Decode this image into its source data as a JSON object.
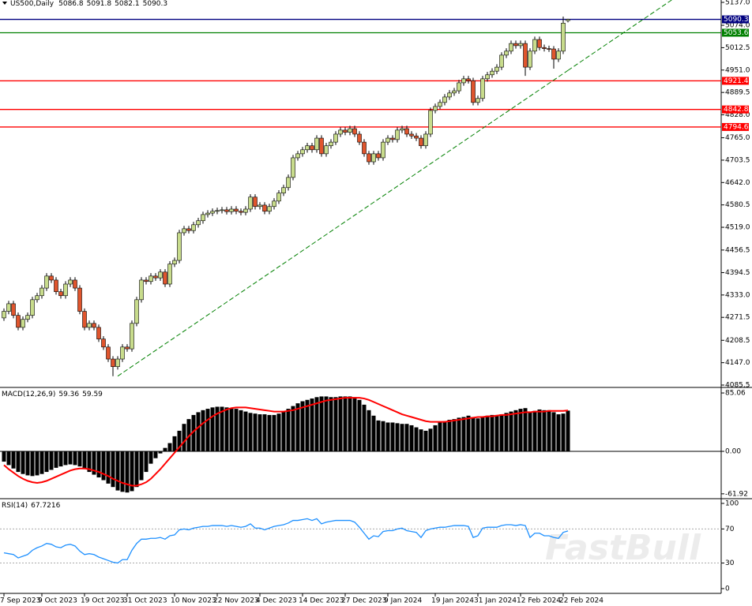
{
  "chart_data": [
    {
      "type": "candlestick",
      "title": "US500,Daily",
      "watermark": "FastBull",
      "categories": [
        "7 Sep 2023",
        null,
        null,
        null,
        null,
        null,
        null,
        null,
        "9 Oct 2023",
        null,
        null,
        null,
        null,
        null,
        null,
        null,
        null,
        "19 Oct 2023",
        null,
        null,
        null,
        null,
        null,
        null,
        null,
        null,
        "31 Oct 2023",
        null,
        null,
        null,
        null,
        null,
        null,
        null,
        null,
        null,
        "10 Nov 2023",
        null,
        null,
        null,
        null,
        null,
        null,
        null,
        null,
        "22 Nov 2023",
        null,
        null,
        null,
        null,
        null,
        null,
        null,
        null,
        "4 Dec 2023",
        null,
        null,
        null,
        null,
        null,
        null,
        null,
        null,
        "14 Dec 2023",
        null,
        null,
        null,
        null,
        null,
        null,
        null,
        null,
        "27 Dec 2023",
        null,
        null,
        null,
        null,
        null,
        null,
        null,
        null,
        "9 Jan 2024",
        null,
        null,
        null,
        null,
        null,
        null,
        null,
        null,
        null,
        "19 Jan 2024",
        null,
        null,
        null,
        null,
        null,
        null,
        null,
        null,
        "31 Jan 2024",
        null,
        null,
        null,
        null,
        null,
        null,
        null,
        null,
        "12 Feb 2024",
        null,
        null,
        null,
        null,
        null,
        null,
        null,
        null,
        "22 Feb 2024",
        null
      ],
      "open": [
        4270,
        4288,
        4309,
        4277,
        4244,
        4266,
        4277,
        4320,
        4331,
        4352,
        4385,
        4374,
        4342,
        4331,
        4363,
        4374,
        4352,
        4288,
        4244,
        4255,
        4244,
        4212,
        4190,
        4157,
        4136,
        4157,
        4190,
        4185,
        4255,
        4320,
        4374,
        4370,
        4385,
        4380,
        4396,
        4363,
        4418,
        4428,
        4504,
        4515,
        4510,
        4526,
        4537,
        4554,
        4558,
        4563,
        4565,
        4567,
        4562,
        4569,
        4563,
        4560,
        4569,
        4602,
        4576,
        4580,
        4563,
        4576,
        4591,
        4613,
        4628,
        4656,
        4710,
        4721,
        4732,
        4743,
        4732,
        4764,
        4721,
        4743,
        4753,
        4775,
        4786,
        4780,
        4790,
        4775,
        4753,
        4721,
        4699,
        4721,
        4710,
        4753,
        4764,
        4760,
        4786,
        4790,
        4775,
        4770,
        4764,
        4743,
        4775,
        4840,
        4851,
        4862,
        4877,
        4888,
        4894,
        4916,
        4927,
        4922,
        4862,
        4873,
        4927,
        4938,
        4948,
        4959,
        4992,
        5003,
        5024,
        5018,
        5024,
        4959,
        5003,
        5035,
        5013,
        5010,
        5009,
        4981,
        5003,
        5086.8
      ],
      "high": [
        4296,
        4317,
        4317,
        4285,
        4274,
        4285,
        4328,
        4339,
        4360,
        4393,
        4393,
        4382,
        4350,
        4371,
        4382,
        4382,
        4360,
        4296,
        4263,
        4263,
        4252,
        4220,
        4198,
        4165,
        4165,
        4198,
        4198,
        4263,
        4328,
        4382,
        4382,
        4393,
        4393,
        4404,
        4404,
        4426,
        4436,
        4512,
        4523,
        4523,
        4534,
        4545,
        4562,
        4566,
        4571,
        4573,
        4575,
        4575,
        4577,
        4577,
        4571,
        4577,
        4610,
        4610,
        4588,
        4588,
        4584,
        4599,
        4621,
        4636,
        4664,
        4718,
        4729,
        4740,
        4751,
        4751,
        4772,
        4772,
        4751,
        4761,
        4783,
        4794,
        4794,
        4798,
        4798,
        4783,
        4761,
        4729,
        4729,
        4729,
        4761,
        4772,
        4772,
        4794,
        4798,
        4798,
        4783,
        4778,
        4772,
        4783,
        4848,
        4859,
        4870,
        4885,
        4896,
        4902,
        4924,
        4935,
        4935,
        4930,
        4881,
        4935,
        4946,
        4956,
        4967,
        5000,
        5011,
        5032,
        5032,
        5032,
        5032,
        5011,
        5043,
        5043,
        5021,
        5018,
        5017,
        5011,
        5098,
        5091.8
      ],
      "low": [
        4262,
        4280,
        4269,
        4236,
        4236,
        4258,
        4269,
        4312,
        4323,
        4344,
        4366,
        4334,
        4323,
        4323,
        4355,
        4344,
        4280,
        4236,
        4236,
        4236,
        4204,
        4182,
        4149,
        4110,
        4128,
        4149,
        4177,
        4177,
        4247,
        4312,
        4362,
        4362,
        4372,
        4372,
        4355,
        4355,
        4410,
        4420,
        4496,
        4502,
        4502,
        4518,
        4529,
        4546,
        4550,
        4555,
        4557,
        4554,
        4554,
        4555,
        4552,
        4552,
        4561,
        4568,
        4568,
        4555,
        4555,
        4568,
        4583,
        4605,
        4620,
        4648,
        4702,
        4713,
        4724,
        4724,
        4724,
        4713,
        4713,
        4735,
        4745,
        4767,
        4772,
        4772,
        4767,
        4745,
        4713,
        4691,
        4691,
        4702,
        4702,
        4745,
        4752,
        4752,
        4778,
        4767,
        4762,
        4756,
        4735,
        4735,
        4767,
        4832,
        4843,
        4854,
        4869,
        4880,
        4886,
        4908,
        4914,
        4854,
        4854,
        4865,
        4919,
        4930,
        4940,
        4951,
        4984,
        4995,
        5010,
        5010,
        4935,
        4951,
        4995,
        5005,
        5002,
        5001,
        4955,
        4973,
        4995,
        5082.1
      ],
      "close": [
        4288,
        4309,
        4277,
        4244,
        4266,
        4277,
        4320,
        4331,
        4352,
        4385,
        4374,
        4342,
        4331,
        4363,
        4374,
        4352,
        4288,
        4244,
        4255,
        4244,
        4212,
        4190,
        4157,
        4136,
        4157,
        4190,
        4185,
        4255,
        4320,
        4374,
        4370,
        4385,
        4380,
        4396,
        4363,
        4418,
        4428,
        4504,
        4515,
        4510,
        4526,
        4537,
        4554,
        4558,
        4563,
        4565,
        4567,
        4562,
        4569,
        4563,
        4560,
        4569,
        4602,
        4576,
        4580,
        4563,
        4576,
        4591,
        4613,
        4628,
        4656,
        4710,
        4721,
        4732,
        4743,
        4732,
        4764,
        4721,
        4743,
        4753,
        4775,
        4786,
        4780,
        4790,
        4775,
        4753,
        4721,
        4699,
        4721,
        4710,
        4753,
        4764,
        4760,
        4786,
        4790,
        4775,
        4770,
        4764,
        4743,
        4775,
        4840,
        4851,
        4862,
        4877,
        4888,
        4894,
        4916,
        4927,
        4922,
        4862,
        4873,
        4927,
        4938,
        4948,
        4959,
        4992,
        5003,
        5024,
        5018,
        5024,
        4959,
        5003,
        5035,
        5013,
        5010,
        5009,
        4981,
        5003,
        5080,
        5090.3
      ],
      "up_color": "#c8dc8c",
      "down_color": "#e0552d",
      "levels": [
        {
          "value": 5090.3,
          "color": "#000080"
        },
        {
          "value": 5053.6,
          "color": "#008000"
        },
        {
          "value": 4921.4,
          "color": "#ff0000"
        },
        {
          "value": 4842.8,
          "color": "#ff0000"
        },
        {
          "value": 4794.6,
          "color": "#ff0000"
        }
      ],
      "trendline": {
        "x": [
          24,
          119
        ],
        "values": [
          4110,
          4950
        ],
        "color": "#008000"
      },
      "ylim": [
        4079,
        5143.5
      ],
      "yticks": [
        {
          "value": 5137,
          "label": "5137.0"
        },
        {
          "value": 5074,
          "label": "5074.0"
        },
        5012.5,
        {
          "value": 4951,
          "label": "4951.0"
        },
        4889.5,
        {
          "value": 4828,
          "label": "4828.0"
        },
        {
          "value": 4765,
          "label": "4765.0"
        },
        4703.5,
        {
          "value": 4642,
          "label": "4642.0"
        },
        4580.5,
        {
          "value": 4519,
          "label": "4519.0"
        },
        4456.5,
        4394.5,
        {
          "value": 4333,
          "label": "4333.0"
        },
        4271.5,
        4208.5,
        {
          "value": 4147,
          "label": "4147.0"
        },
        4085.5
      ]
    },
    {
      "type": "macd",
      "title": "MACD(12,26,9)",
      "series": [
        {
          "color": "#000000",
          "values": [
            -15,
            -20,
            -25,
            -30,
            -33,
            -35,
            -36,
            -35,
            -33,
            -30,
            -27,
            -24,
            -22,
            -20,
            -19,
            -20,
            -22,
            -26,
            -30,
            -34,
            -38,
            -42,
            -47,
            -52,
            -57,
            -59,
            -60,
            -58,
            -52,
            -42,
            -30,
            -18,
            -10,
            -3,
            5,
            12,
            22,
            30,
            40,
            47,
            53,
            57,
            60,
            62,
            64,
            65,
            65,
            64,
            63,
            62,
            60,
            58,
            56,
            55,
            54,
            54,
            53,
            53,
            55,
            58,
            62,
            66,
            70,
            73,
            75,
            77,
            79,
            80,
            80,
            79,
            79,
            80,
            80,
            80,
            79,
            75,
            68,
            60,
            52,
            45,
            44,
            42,
            42,
            41,
            40,
            40,
            38,
            35,
            32,
            30,
            33,
            38,
            42,
            44,
            46,
            47,
            49,
            50,
            52,
            50,
            48,
            50,
            52,
            53,
            53,
            54,
            56,
            58,
            60,
            62,
            63,
            58,
            59,
            61,
            60,
            60,
            57,
            54,
            55,
            59.36
          ]
        },
        {
          "color": "#ff0000",
          "values": [
            -20,
            -26,
            -31,
            -36,
            -40,
            -43,
            -45,
            -46,
            -45,
            -43,
            -40,
            -37,
            -34,
            -31,
            -28,
            -26,
            -25,
            -25,
            -26,
            -28,
            -30,
            -33,
            -36,
            -40,
            -43,
            -46,
            -48,
            -50,
            -50,
            -48,
            -45,
            -40,
            -33,
            -26,
            -18,
            -10,
            -2,
            6,
            14,
            22,
            29,
            35,
            41,
            46,
            51,
            55,
            58,
            61,
            63,
            64,
            64,
            64,
            63,
            62,
            61,
            60,
            59,
            58,
            58,
            58,
            59,
            60,
            62,
            64,
            66,
            68,
            70,
            72,
            74,
            75,
            76,
            77,
            78,
            78,
            78,
            78,
            77,
            75,
            72,
            69,
            66,
            63,
            60,
            57,
            54,
            52,
            50,
            48,
            46,
            44,
            43,
            43,
            43,
            43,
            44,
            45,
            46,
            47,
            48,
            49,
            50,
            50,
            51,
            51,
            52,
            53,
            53,
            54,
            55,
            56,
            57,
            57,
            58,
            58,
            58,
            59,
            59,
            59,
            59,
            59.59
          ]
        }
      ],
      "ylim": [
        -69,
        92
      ],
      "yticks": [
        85.06,
        {
          "value": 0,
          "label": "0.00"
        },
        -61.92
      ]
    },
    {
      "type": "line",
      "title": "RSI(14)",
      "series": [
        {
          "color": "#1e90ff",
          "values": [
            42,
            41,
            40,
            36,
            38,
            40,
            45,
            48,
            50,
            53,
            52,
            49,
            48,
            51,
            52,
            50,
            44,
            40,
            41,
            40,
            37,
            35,
            33,
            31,
            30,
            34,
            34,
            45,
            53,
            58,
            58,
            59,
            59,
            60,
            58,
            62,
            63,
            69,
            70,
            69,
            71,
            72,
            73,
            73,
            74,
            74,
            74,
            73,
            74,
            73,
            72,
            73,
            76,
            71,
            71,
            69,
            71,
            73,
            74,
            75,
            77,
            80,
            80,
            81,
            82,
            80,
            82,
            76,
            78,
            79,
            80,
            80,
            80,
            80,
            78,
            72,
            65,
            58,
            62,
            61,
            67,
            68,
            68,
            70,
            71,
            68,
            67,
            66,
            60,
            68,
            70,
            71,
            72,
            72,
            73,
            74,
            74,
            74,
            73,
            60,
            62,
            71,
            72,
            72,
            72,
            74,
            75,
            75,
            74,
            75,
            74,
            60,
            65,
            65,
            62,
            62,
            60,
            59,
            66,
            67.7216
          ]
        }
      ],
      "levels": [
        70,
        30
      ],
      "ylim": [
        -5.6,
        104.6
      ],
      "yticks": [
        100,
        70,
        30,
        0
      ]
    }
  ]
}
